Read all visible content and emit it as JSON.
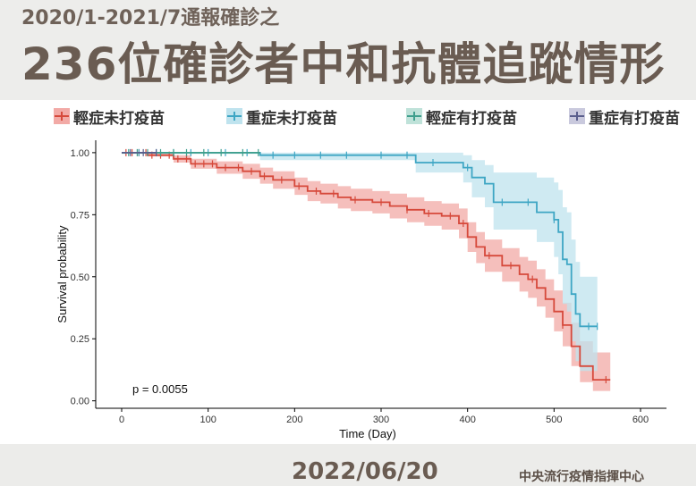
{
  "header": {
    "subtitle": "2020/1-2021/7通報確診之",
    "title": "236位確診者中和抗體追蹤情形"
  },
  "footer": {
    "date": "2022/06/20",
    "org": "中央流行疫情指揮中心"
  },
  "chart_data": {
    "type": "line",
    "xlabel": "Time (Day)",
    "ylabel": "Survival probability",
    "xlim": [
      -30,
      630
    ],
    "ylim": [
      -0.03,
      1.05
    ],
    "x_ticks": [
      0,
      100,
      200,
      300,
      400,
      500,
      600
    ],
    "y_ticks": [
      0.0,
      0.25,
      0.5,
      0.75,
      1.0
    ],
    "y_tick_labels": [
      "0.00",
      "0.25",
      "0.50",
      "0.75",
      "1.00"
    ],
    "grid": false,
    "legend_position": "top",
    "annotation": "p = 0.0055",
    "series": [
      {
        "name": "輕症未打疫苗",
        "color": "#d6493b",
        "band_color": "#f2aaa6",
        "points": [
          [
            0,
            1.0
          ],
          [
            30,
            0.99
          ],
          [
            60,
            0.975
          ],
          [
            80,
            0.955
          ],
          [
            110,
            0.94
          ],
          [
            140,
            0.925
          ],
          [
            160,
            0.905
          ],
          [
            175,
            0.89
          ],
          [
            200,
            0.865
          ],
          [
            215,
            0.845
          ],
          [
            230,
            0.835
          ],
          [
            250,
            0.82
          ],
          [
            265,
            0.81
          ],
          [
            290,
            0.8
          ],
          [
            310,
            0.785
          ],
          [
            330,
            0.77
          ],
          [
            350,
            0.755
          ],
          [
            370,
            0.745
          ],
          [
            390,
            0.715
          ],
          [
            400,
            0.66
          ],
          [
            410,
            0.62
          ],
          [
            420,
            0.585
          ],
          [
            440,
            0.545
          ],
          [
            460,
            0.51
          ],
          [
            470,
            0.49
          ],
          [
            480,
            0.455
          ],
          [
            490,
            0.41
          ],
          [
            500,
            0.36
          ],
          [
            510,
            0.305
          ],
          [
            520,
            0.22
          ],
          [
            530,
            0.14
          ],
          [
            545,
            0.085
          ],
          [
            565,
            0.085
          ]
        ],
        "lower": [
          [
            0,
            1.0
          ],
          [
            30,
            0.985
          ],
          [
            60,
            0.96
          ],
          [
            80,
            0.935
          ],
          [
            110,
            0.915
          ],
          [
            140,
            0.895
          ],
          [
            160,
            0.875
          ],
          [
            175,
            0.855
          ],
          [
            200,
            0.83
          ],
          [
            215,
            0.805
          ],
          [
            230,
            0.795
          ],
          [
            250,
            0.775
          ],
          [
            265,
            0.765
          ],
          [
            290,
            0.755
          ],
          [
            310,
            0.735
          ],
          [
            330,
            0.72
          ],
          [
            350,
            0.705
          ],
          [
            370,
            0.69
          ],
          [
            390,
            0.655
          ],
          [
            400,
            0.6
          ],
          [
            410,
            0.555
          ],
          [
            420,
            0.52
          ],
          [
            440,
            0.48
          ],
          [
            460,
            0.44
          ],
          [
            470,
            0.415
          ],
          [
            480,
            0.38
          ],
          [
            490,
            0.335
          ],
          [
            500,
            0.28
          ],
          [
            510,
            0.22
          ],
          [
            520,
            0.14
          ],
          [
            530,
            0.075
          ],
          [
            545,
            0.04
          ],
          [
            565,
            0.04
          ]
        ],
        "upper": [
          [
            0,
            1.0
          ],
          [
            30,
            1.0
          ],
          [
            60,
            0.99
          ],
          [
            80,
            0.975
          ],
          [
            110,
            0.965
          ],
          [
            140,
            0.955
          ],
          [
            160,
            0.94
          ],
          [
            175,
            0.925
          ],
          [
            200,
            0.9
          ],
          [
            215,
            0.885
          ],
          [
            230,
            0.875
          ],
          [
            250,
            0.865
          ],
          [
            265,
            0.855
          ],
          [
            290,
            0.845
          ],
          [
            310,
            0.835
          ],
          [
            330,
            0.82
          ],
          [
            350,
            0.805
          ],
          [
            370,
            0.795
          ],
          [
            390,
            0.775
          ],
          [
            400,
            0.72
          ],
          [
            410,
            0.68
          ],
          [
            420,
            0.65
          ],
          [
            440,
            0.615
          ],
          [
            460,
            0.58
          ],
          [
            470,
            0.565
          ],
          [
            480,
            0.53
          ],
          [
            490,
            0.49
          ],
          [
            500,
            0.445
          ],
          [
            510,
            0.395
          ],
          [
            520,
            0.315
          ],
          [
            530,
            0.24
          ],
          [
            545,
            0.195
          ],
          [
            565,
            0.195
          ]
        ],
        "censor_x": [
          5,
          12,
          20,
          28,
          35,
          45,
          55,
          65,
          75,
          85,
          95,
          105,
          120,
          135,
          150,
          165,
          185,
          205,
          225,
          245,
          270,
          300,
          330,
          355,
          380,
          395,
          425,
          450,
          475,
          510,
          560
        ]
      },
      {
        "name": "重症未打疫苗",
        "color": "#3ea6c4",
        "band_color": "#bfe3ee",
        "points": [
          [
            0,
            1.0
          ],
          [
            160,
            0.99
          ],
          [
            340,
            0.96
          ],
          [
            395,
            0.94
          ],
          [
            405,
            0.9
          ],
          [
            420,
            0.875
          ],
          [
            430,
            0.8
          ],
          [
            480,
            0.76
          ],
          [
            500,
            0.73
          ],
          [
            505,
            0.68
          ],
          [
            510,
            0.57
          ],
          [
            515,
            0.55
          ],
          [
            520,
            0.43
          ],
          [
            525,
            0.35
          ],
          [
            530,
            0.3
          ],
          [
            550,
            0.3
          ]
        ],
        "lower": [
          [
            0,
            1.0
          ],
          [
            160,
            0.97
          ],
          [
            340,
            0.92
          ],
          [
            395,
            0.88
          ],
          [
            405,
            0.82
          ],
          [
            420,
            0.78
          ],
          [
            430,
            0.69
          ],
          [
            480,
            0.64
          ],
          [
            500,
            0.58
          ],
          [
            505,
            0.51
          ],
          [
            510,
            0.39
          ],
          [
            515,
            0.36
          ],
          [
            520,
            0.24
          ],
          [
            525,
            0.16
          ],
          [
            530,
            0.12
          ],
          [
            550,
            0.12
          ]
        ],
        "upper": [
          [
            0,
            1.0
          ],
          [
            160,
            1.0
          ],
          [
            340,
            1.0
          ],
          [
            395,
            0.99
          ],
          [
            405,
            0.97
          ],
          [
            420,
            0.95
          ],
          [
            430,
            0.92
          ],
          [
            480,
            0.9
          ],
          [
            500,
            0.88
          ],
          [
            505,
            0.85
          ],
          [
            510,
            0.78
          ],
          [
            515,
            0.76
          ],
          [
            520,
            0.65
          ],
          [
            525,
            0.56
          ],
          [
            530,
            0.5
          ],
          [
            550,
            0.5
          ]
        ],
        "censor_x": [
          20,
          40,
          60,
          80,
          100,
          120,
          145,
          175,
          200,
          230,
          260,
          300,
          330,
          360,
          400,
          440,
          470,
          500,
          540,
          550
        ]
      },
      {
        "name": "輕症有打疫苗",
        "color": "#3f9f8d",
        "band_color": "#bfe2d9",
        "points": [
          [
            0,
            1.0
          ],
          [
            160,
            1.0
          ]
        ],
        "lower": [
          [
            0,
            0.995
          ],
          [
            160,
            0.995
          ]
        ],
        "upper": [
          [
            0,
            1.0
          ],
          [
            160,
            1.0
          ]
        ],
        "censor_x": [
          8,
          18,
          30,
          45,
          60,
          75,
          95,
          115,
          140,
          158
        ]
      },
      {
        "name": "重症有打疫苗",
        "color": "#5a5e8c",
        "band_color": "#c9c9dd",
        "points": [
          [
            0,
            1.0
          ],
          [
            40,
            1.0
          ]
        ],
        "lower": [
          [
            0,
            0.996
          ],
          [
            40,
            0.996
          ]
        ],
        "upper": [
          [
            0,
            1.0
          ],
          [
            40,
            1.0
          ]
        ],
        "censor_x": [
          10,
          25,
          40
        ]
      }
    ]
  }
}
